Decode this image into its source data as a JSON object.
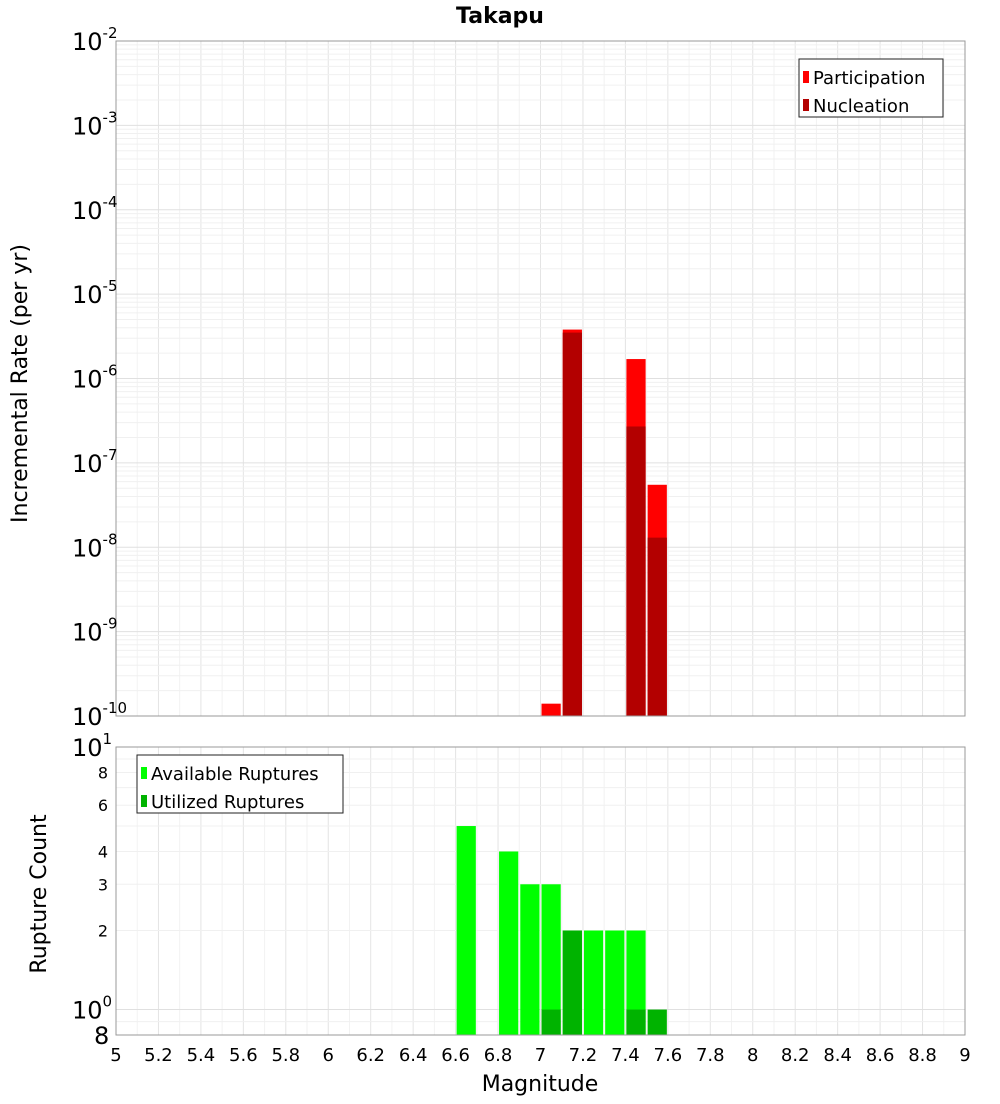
{
  "title": "Takapu",
  "chart_data": [
    {
      "type": "bar",
      "panel": "top",
      "ylabel": "Incremental Rate (per yr)",
      "yscale": "log",
      "ylim": [
        1e-10,
        0.01
      ],
      "xlim": [
        5,
        9
      ],
      "y_ticks": [
        {
          "base": "10",
          "exp": "-2",
          "value": 0.01
        },
        {
          "base": "10",
          "exp": "-3",
          "value": 0.001
        },
        {
          "base": "10",
          "exp": "-4",
          "value": 0.0001
        },
        {
          "base": "10",
          "exp": "-5",
          "value": 1e-05
        },
        {
          "base": "10",
          "exp": "-6",
          "value": 1e-06
        },
        {
          "base": "10",
          "exp": "-7",
          "value": 1e-07
        },
        {
          "base": "10",
          "exp": "-8",
          "value": 1e-08
        },
        {
          "base": "10",
          "exp": "-9",
          "value": 1e-09
        },
        {
          "base": "10",
          "exp": "-10",
          "value": 1e-10
        }
      ],
      "legend_position": "top-right",
      "series": [
        {
          "name": "Participation",
          "color": "#ff0000",
          "x": [
            7.05,
            7.15,
            7.45,
            7.55
          ],
          "values": [
            1.4e-10,
            3.8e-06,
            1.7e-06,
            5.5e-08
          ]
        },
        {
          "name": "Nucleation",
          "color": "#b30000",
          "x": [
            7.15,
            7.45,
            7.55
          ],
          "values": [
            3.5e-06,
            2.7e-07,
            1.3e-08
          ]
        }
      ]
    },
    {
      "type": "bar",
      "panel": "bottom",
      "ylabel": "Rupture Count",
      "xlabel": "Magnitude",
      "yscale": "log",
      "ylim": [
        0.8,
        10
      ],
      "xlim": [
        5,
        9
      ],
      "x_ticks": [
        "5",
        "5.2",
        "5.4",
        "5.6",
        "5.8",
        "6",
        "6.2",
        "6.4",
        "6.6",
        "6.8",
        "7",
        "7.2",
        "7.4",
        "7.6",
        "7.8",
        "8",
        "8.2",
        "8.4",
        "8.6",
        "8.8",
        "9"
      ],
      "y_ticks": [
        {
          "label": "8",
          "value": 8
        },
        {
          "label": "6",
          "value": 6
        },
        {
          "label": "4",
          "value": 4
        },
        {
          "label": "3",
          "value": 3
        },
        {
          "label": "2",
          "value": 2
        }
      ],
      "y_major_ticks": [
        {
          "base": "10",
          "exp": "1",
          "value": 10
        },
        {
          "base": "10",
          "exp": "0",
          "value": 1
        },
        {
          "base": "8",
          "exp": "",
          "value": 0.8
        }
      ],
      "legend_position": "top-left",
      "series": [
        {
          "name": "Available Ruptures",
          "color": "#00ff00",
          "x": [
            6.65,
            6.85,
            6.95,
            7.05,
            7.15,
            7.25,
            7.35,
            7.45
          ],
          "values": [
            5,
            4,
            3,
            3,
            2,
            2,
            2,
            2
          ]
        },
        {
          "name": "Utilized Ruptures",
          "color": "#00b300",
          "x": [
            7.05,
            7.15,
            7.45,
            7.55
          ],
          "values": [
            1,
            2,
            1,
            1
          ]
        }
      ]
    }
  ]
}
